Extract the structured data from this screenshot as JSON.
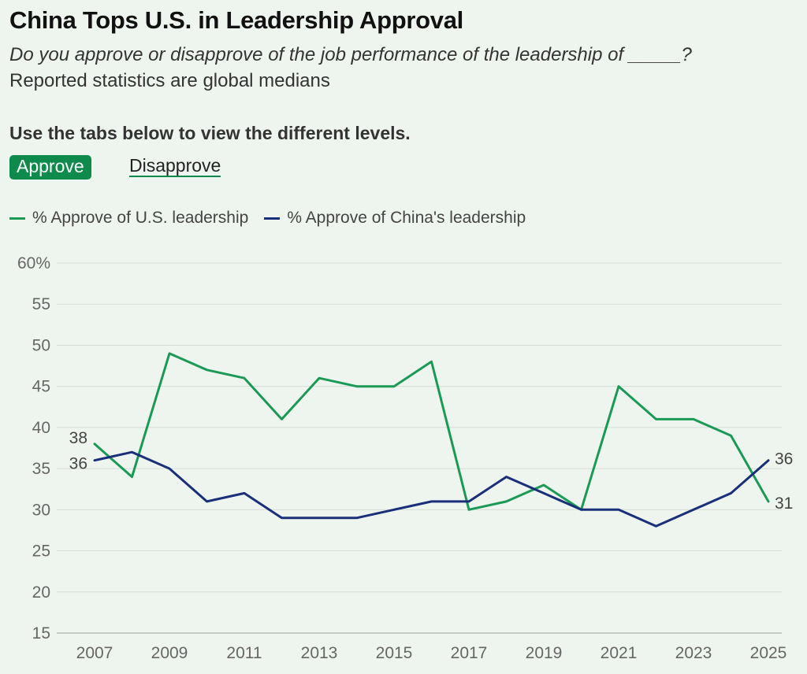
{
  "header": {
    "title": "China Tops U.S. in Leadership Approval",
    "subtitle": "Do you approve or disapprove of the job performance of the leadership of _____?",
    "note": "Reported statistics are global medians",
    "instruction": "Use the tabs below to view the different levels."
  },
  "tabs": {
    "active_label": "Approve",
    "inactive_label": "Disapprove"
  },
  "colors": {
    "us": "#1b9a56",
    "china": "#1a2f7a",
    "grid": "#d6dcd6",
    "tab_active": "#0e8a4c"
  },
  "chart_data": {
    "type": "line",
    "x": [
      2007,
      2008,
      2009,
      2010,
      2011,
      2012,
      2013,
      2014,
      2015,
      2016,
      2017,
      2018,
      2019,
      2020,
      2021,
      2022,
      2023,
      2024,
      2025
    ],
    "x_ticks": [
      2007,
      2009,
      2011,
      2013,
      2015,
      2017,
      2019,
      2021,
      2023,
      2025
    ],
    "y_ticks": [
      {
        "value": 60,
        "label": "60%"
      },
      {
        "value": 55,
        "label": "55"
      },
      {
        "value": 50,
        "label": "50"
      },
      {
        "value": 45,
        "label": "45"
      },
      {
        "value": 40,
        "label": "40"
      },
      {
        "value": 35,
        "label": "35"
      },
      {
        "value": 30,
        "label": "30"
      },
      {
        "value": 25,
        "label": "25"
      },
      {
        "value": 20,
        "label": "20"
      },
      {
        "value": 15,
        "label": "15"
      }
    ],
    "ylim": [
      15,
      60
    ],
    "grid": true,
    "legend_position": "top-left",
    "series": [
      {
        "key": "us",
        "name": "% Approve of U.S. leadership",
        "values": [
          38,
          34,
          49,
          47,
          46,
          41,
          46,
          45,
          45,
          48,
          30,
          31,
          33,
          30,
          45,
          41,
          41,
          39,
          31
        ],
        "start_label": "38",
        "end_label": "31"
      },
      {
        "key": "china",
        "name": "% Approve of China's leadership",
        "values": [
          36,
          37,
          35,
          31,
          32,
          29,
          29,
          29,
          30,
          31,
          31,
          34,
          32,
          30,
          30,
          28,
          30,
          32,
          36
        ],
        "start_label": "36",
        "end_label": "36"
      }
    ]
  }
}
